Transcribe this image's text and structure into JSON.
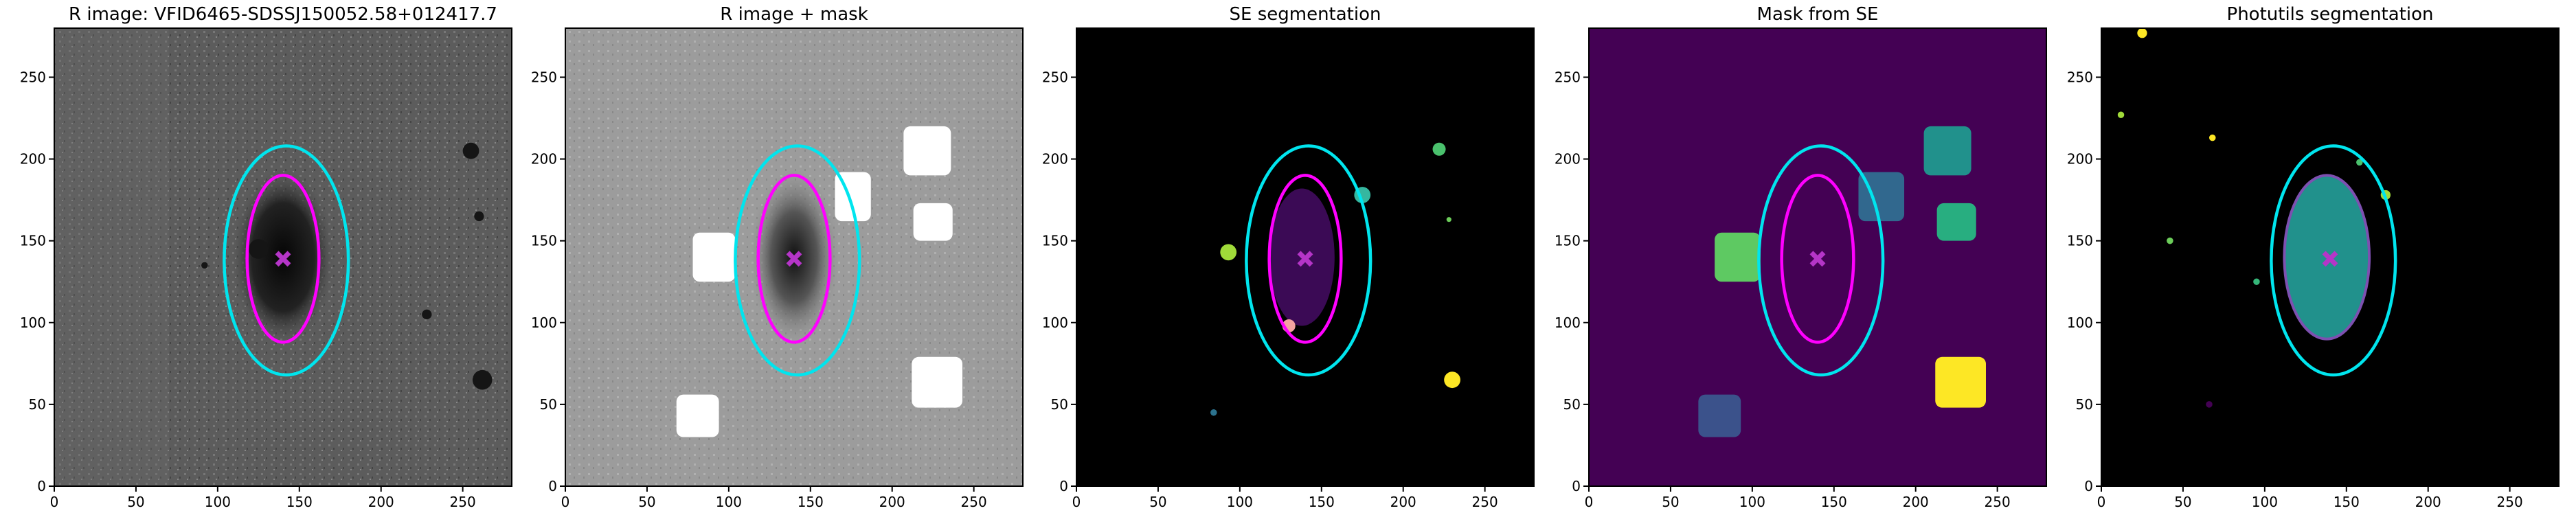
{
  "chart_data": [
    {
      "type": "image",
      "title": "R image: VFID6465-SDSSJ150052.58+012417.7",
      "xlim": [
        0,
        280
      ],
      "ylim": [
        0,
        280
      ],
      "xticks": [
        0,
        50,
        100,
        150,
        200,
        250
      ],
      "yticks": [
        0,
        50,
        100,
        150,
        200,
        250
      ],
      "ellipses": [
        {
          "x": 142,
          "y": 138,
          "width": 76,
          "height": 140,
          "color": "#00e5ee"
        },
        {
          "x": 140,
          "y": 139,
          "width": 44,
          "height": 102,
          "color": "#ff00ff"
        }
      ],
      "marker": {
        "x": 140,
        "y": 139,
        "color": "#b535c8"
      }
    },
    {
      "type": "image",
      "title": "R image + mask",
      "xlim": [
        0,
        280
      ],
      "ylim": [
        0,
        280
      ],
      "xticks": [
        0,
        50,
        100,
        150,
        200,
        250
      ],
      "yticks": [
        0,
        50,
        100,
        150,
        200,
        250
      ],
      "ellipses": [
        {
          "x": 142,
          "y": 138,
          "width": 76,
          "height": 140,
          "color": "#00e5ee"
        },
        {
          "x": 140,
          "y": 139,
          "width": 44,
          "height": 102,
          "color": "#ff00ff"
        }
      ],
      "marker": {
        "x": 140,
        "y": 139,
        "color": "#b535c8"
      }
    },
    {
      "type": "image",
      "title": "SE segmentation",
      "xlim": [
        0,
        280
      ],
      "ylim": [
        0,
        280
      ],
      "xticks": [
        0,
        50,
        100,
        150,
        200,
        250
      ],
      "yticks": [
        0,
        50,
        100,
        150,
        200,
        250
      ],
      "ellipses": [
        {
          "x": 142,
          "y": 138,
          "width": 76,
          "height": 140,
          "color": "#00e5ee"
        },
        {
          "x": 140,
          "y": 139,
          "width": 44,
          "height": 102,
          "color": "#ff00ff"
        }
      ],
      "marker": {
        "x": 140,
        "y": 139,
        "color": "#b535c8"
      }
    },
    {
      "type": "image",
      "title": "Mask from SE",
      "xlim": [
        0,
        280
      ],
      "ylim": [
        0,
        280
      ],
      "xticks": [
        0,
        50,
        100,
        150,
        200,
        250
      ],
      "yticks": [
        0,
        50,
        100,
        150,
        200,
        250
      ],
      "ellipses": [
        {
          "x": 142,
          "y": 138,
          "width": 76,
          "height": 140,
          "color": "#00e5ee"
        },
        {
          "x": 140,
          "y": 139,
          "width": 44,
          "height": 102,
          "color": "#ff00ff"
        }
      ],
      "marker": {
        "x": 140,
        "y": 139,
        "color": "#b535c8"
      }
    },
    {
      "type": "image",
      "title": "Photutils segmentation",
      "xlim": [
        0,
        280
      ],
      "ylim": [
        0,
        280
      ],
      "xticks": [
        0,
        50,
        100,
        150,
        200,
        250
      ],
      "yticks": [
        0,
        50,
        100,
        150,
        200,
        250
      ],
      "ellipses": [
        {
          "x": 142,
          "y": 138,
          "width": 76,
          "height": 140,
          "color": "#00e5ee"
        }
      ],
      "marker": {
        "x": 140,
        "y": 139,
        "color": "#b535c8"
      }
    }
  ]
}
